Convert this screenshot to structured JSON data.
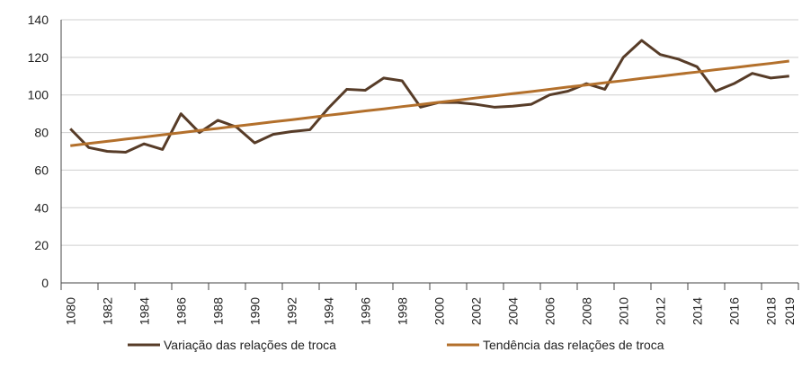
{
  "chart_data": {
    "type": "line",
    "categories": [
      "1080",
      null,
      "1982",
      null,
      "1984",
      null,
      "1986",
      null,
      "1988",
      null,
      "1990",
      null,
      "1992",
      null,
      "1994",
      null,
      "1996",
      null,
      "1998",
      null,
      "2000",
      null,
      "2002",
      null,
      "2004",
      null,
      "2006",
      null,
      "2008",
      null,
      "2010",
      null,
      "2012",
      null,
      "2014",
      null,
      "2016",
      null,
      "2018",
      "2019"
    ],
    "series": [
      {
        "name": "Variação das relações de troca",
        "color": "#573c28",
        "values": [
          82,
          72,
          70,
          69.5,
          74,
          71,
          90,
          80,
          86.5,
          83,
          74.5,
          79,
          80.5,
          81.5,
          93,
          103,
          102.5,
          109,
          107.5,
          93.5,
          96,
          96,
          95,
          93.5,
          94,
          95,
          100,
          102,
          106,
          103,
          120,
          129,
          121.5,
          119,
          115,
          102,
          106,
          111.5,
          109,
          110
        ]
      },
      {
        "name": "Tendência das relações de troca",
        "color": "#b3702c",
        "values": [
          73.0,
          74.2,
          75.3,
          76.5,
          77.6,
          78.8,
          79.9,
          81.1,
          82.2,
          83.4,
          84.5,
          85.7,
          86.8,
          88.0,
          89.2,
          90.3,
          91.5,
          92.6,
          93.8,
          94.9,
          96.1,
          97.2,
          98.4,
          99.5,
          100.7,
          101.8,
          103.0,
          104.2,
          105.3,
          106.5,
          107.6,
          108.8,
          109.9,
          111.1,
          112.2,
          113.4,
          114.5,
          115.7,
          116.8,
          118.0
        ]
      }
    ],
    "ylim": [
      0,
      140
    ],
    "yticks": [
      0,
      20,
      40,
      60,
      80,
      100,
      120,
      140
    ],
    "grid": true,
    "legend": "bottom"
  }
}
